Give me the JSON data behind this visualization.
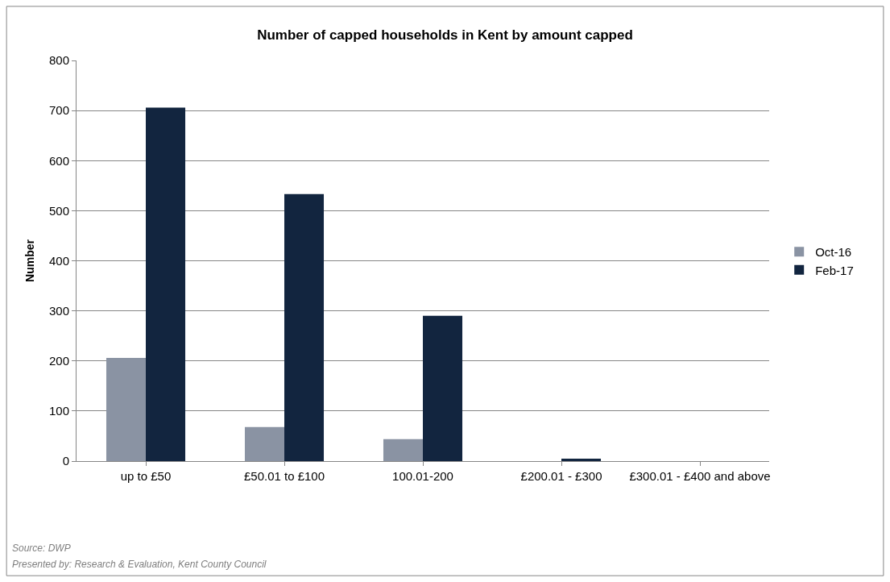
{
  "chart_data": {
    "type": "bar",
    "title": "Number of capped households in Kent by amount capped",
    "ylabel": "Number",
    "categories": [
      "up to £50",
      "£50.01 to £100",
      "100.01-200",
      "£200.01 - £300",
      "£300.01 - £400 and above"
    ],
    "series": [
      {
        "name": "Oct-16",
        "color": "#8a93a3",
        "values": [
          206,
          68,
          44,
          0,
          0
        ]
      },
      {
        "name": "Feb-17",
        "color": "#12253f",
        "values": [
          706,
          533,
          290,
          5,
          0
        ]
      }
    ],
    "ylim": [
      0,
      800
    ],
    "yticks": [
      0,
      100,
      200,
      300,
      400,
      500,
      600,
      700,
      800
    ],
    "grid": "y",
    "legend": "right",
    "annotations": [
      "Source: DWP",
      "Presented by: Research & Evaluation, Kent County Council"
    ]
  }
}
